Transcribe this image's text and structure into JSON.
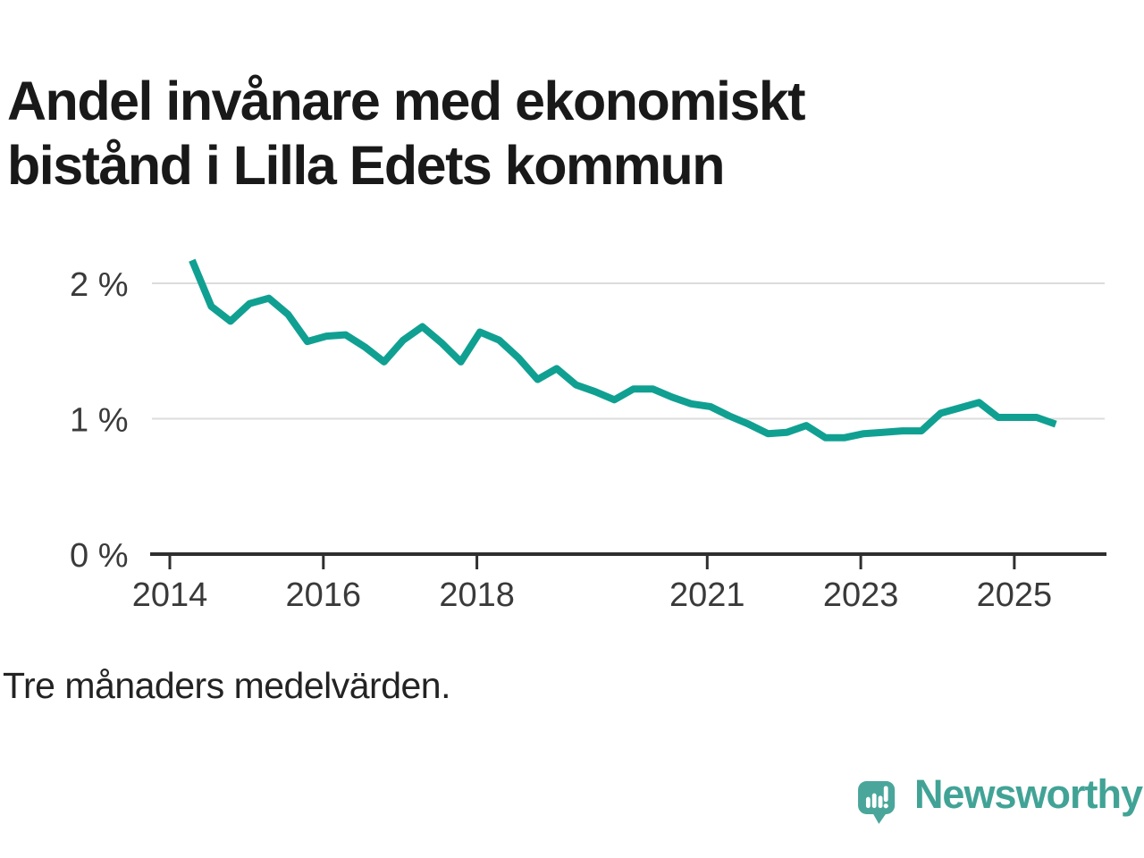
{
  "header": {
    "title_line1": "Andel invånare med ekonomiskt",
    "title_line2": "bistånd i Lilla Edets kommun"
  },
  "footnote": {
    "text": "Tre månaders medelvärden."
  },
  "brand": {
    "name": "Newsworthy",
    "logo_icon": "speech-bubble-bar-chart-exclamation-icon",
    "logo_color": "#4aa69b",
    "text_color": "#41a396"
  },
  "chart_data": {
    "type": "line",
    "title": "Andel invånare med ekonomiskt bistånd i Lilla Edets kommun",
    "subtitle": "",
    "xlabel": "",
    "ylabel": "",
    "unit": "%",
    "note": "Tre månaders medelvärden.",
    "grid": "horizontal",
    "legend_position": "none",
    "x_range": [
      2013.77,
      2026.18
    ],
    "ylim": [
      0,
      2.31
    ],
    "x_ticks": [
      2014,
      2016,
      2018,
      2021,
      2023,
      2025
    ],
    "y_ticks": [
      {
        "value": 0,
        "label": "0 %",
        "gridline": false
      },
      {
        "value": 1,
        "label": "1 %",
        "gridline": true
      },
      {
        "value": 2,
        "label": "2 %",
        "gridline": true
      }
    ],
    "colors": {
      "line": "#10a092",
      "gridline": "#dcdcdc",
      "axis": "#2f2f2f",
      "tick_label": "#3a3a3a"
    },
    "series": [
      {
        "name": "Andel invånare med ekonomiskt bistånd",
        "color": "#10a092",
        "x": [
          2014.29,
          2014.54,
          2014.79,
          2015.04,
          2015.29,
          2015.54,
          2015.79,
          2016.04,
          2016.29,
          2016.54,
          2016.79,
          2017.04,
          2017.29,
          2017.54,
          2017.79,
          2018.04,
          2018.29,
          2018.54,
          2018.79,
          2019.04,
          2019.29,
          2019.54,
          2019.79,
          2020.04,
          2020.29,
          2020.54,
          2020.79,
          2021.04,
          2021.29,
          2021.54,
          2021.79,
          2022.04,
          2022.29,
          2022.54,
          2022.79,
          2023.04,
          2023.29,
          2023.54,
          2023.79,
          2024.04,
          2024.29,
          2024.54,
          2024.79,
          2025.04,
          2025.29,
          2025.54
        ],
        "y": [
          2.17,
          1.83,
          1.72,
          1.85,
          1.89,
          1.77,
          1.57,
          1.61,
          1.62,
          1.53,
          1.42,
          1.58,
          1.68,
          1.56,
          1.42,
          1.64,
          1.58,
          1.45,
          1.29,
          1.37,
          1.25,
          1.2,
          1.14,
          1.22,
          1.22,
          1.16,
          1.11,
          1.09,
          1.02,
          0.96,
          0.89,
          0.9,
          0.95,
          0.86,
          0.86,
          0.89,
          0.9,
          0.91,
          0.91,
          1.04,
          1.08,
          1.12,
          1.01,
          1.01,
          1.01,
          0.96
        ]
      }
    ]
  }
}
